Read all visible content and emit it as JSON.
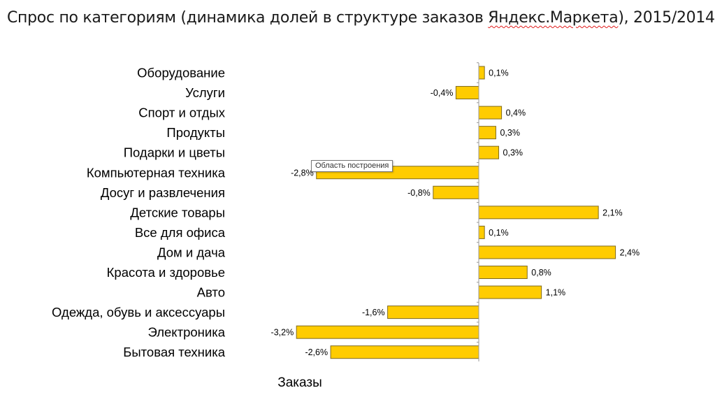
{
  "title": {
    "part1": "Спрос по категориям (динамика долей в структуре заказов ",
    "part2": "Яндекс.Маркета",
    "part3": "), 2015/2014"
  },
  "tooltip": "Область построения",
  "colors": {
    "bar_fill": "#FFCC00",
    "bar_stroke": "#7F6A1F",
    "axis": "#999999"
  },
  "chart_data": {
    "type": "bar",
    "orientation": "horizontal",
    "title": "Спрос по категориям (динамика долей в структуре заказов Яндекс.Маркета), 2015/2014",
    "xlabel": "Заказы",
    "ylabel": "",
    "xlim": [
      -3.2,
      2.4
    ],
    "grid": false,
    "legend": "none",
    "categories": [
      "Оборудование",
      "Услуги",
      "Спорт и отдых",
      "Продукты",
      "Подарки и цветы",
      "Компьютерная техника",
      "Досуг и развлечения",
      "Детские товары",
      "Все для офиса",
      "Дом и дача",
      "Красота и здоровье",
      "Авто",
      "Одежда, обувь и аксессуары",
      "Электроника",
      "Бытовая техника"
    ],
    "values": [
      0.1,
      -0.4,
      0.4,
      0.3,
      0.35,
      -2.85,
      -0.8,
      2.1,
      0.1,
      2.4,
      0.85,
      1.1,
      -1.6,
      -3.2,
      -2.6
    ],
    "value_labels": [
      "0,1%",
      "-0,4%",
      "0,4%",
      "0,3%",
      "0,3%",
      "-2,8%",
      "-0,8%",
      "2,1%",
      "0,1%",
      "2,4%",
      "0,8%",
      "1,1%",
      "-1,6%",
      "-3,2%",
      "-2,6%"
    ]
  }
}
